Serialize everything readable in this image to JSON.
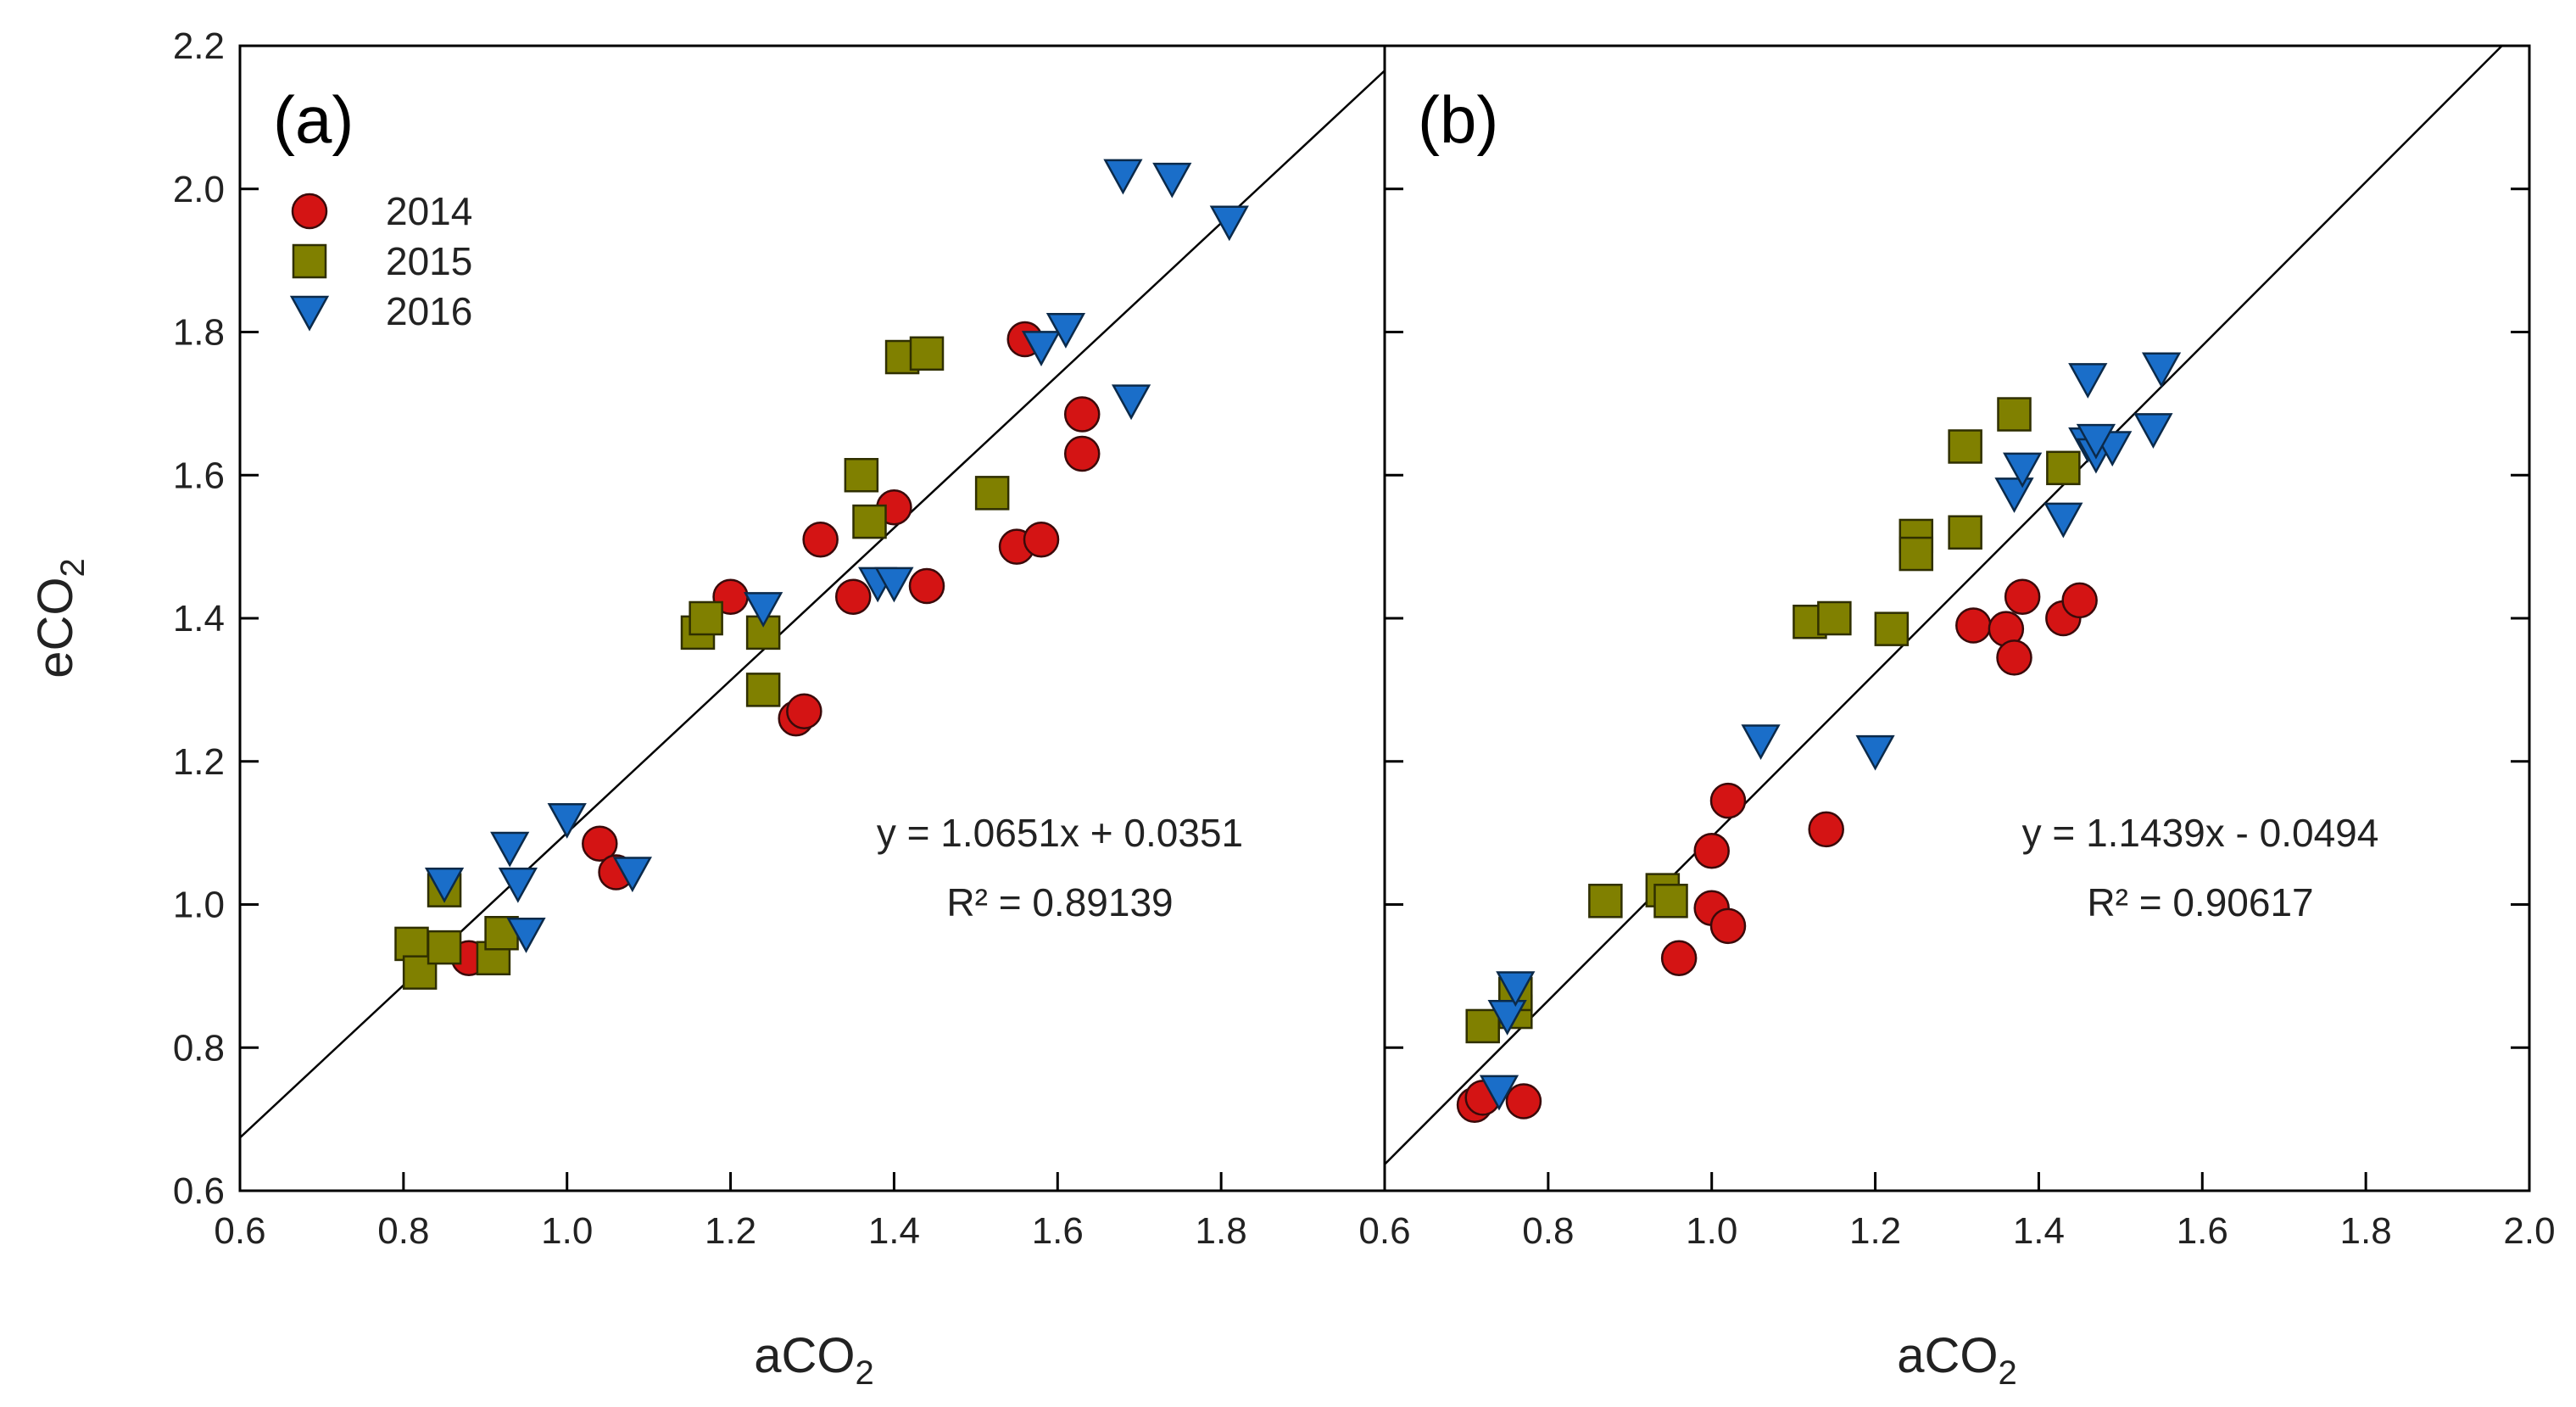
{
  "chart_data": [
    {
      "type": "scatter",
      "panel_label": "(a)",
      "xlabel": "aCO",
      "xlabel_sub": "2",
      "ylabel": "eCO",
      "ylabel_sub": "2",
      "xlim": [
        0.6,
        2.0
      ],
      "ylim": [
        0.6,
        2.2
      ],
      "xticks": [
        "0.6",
        "0.8",
        "1.0",
        "1.2",
        "1.4",
        "1.6",
        "1.8"
      ],
      "yticks": [
        "0.6",
        "0.8",
        "1.0",
        "1.2",
        "1.4",
        "1.6",
        "1.8",
        "2.0",
        "2.2"
      ],
      "fit": {
        "slope": 1.0651,
        "intercept": 0.0351
      },
      "equation": "y = 1.0651x + 0.0351",
      "r2": "R² = 0.89139",
      "legend_position": "top-left",
      "series": [
        {
          "name": "2014",
          "marker": "circle",
          "points": [
            [
              0.88,
              0.925
            ],
            [
              1.04,
              1.085
            ],
            [
              1.06,
              1.045
            ],
            [
              1.2,
              1.43
            ],
            [
              1.28,
              1.26
            ],
            [
              1.29,
              1.27
            ],
            [
              1.31,
              1.51
            ],
            [
              1.35,
              1.43
            ],
            [
              1.4,
              1.555
            ],
            [
              1.44,
              1.445
            ],
            [
              1.55,
              1.5
            ],
            [
              1.58,
              1.51
            ],
            [
              1.56,
              1.79
            ],
            [
              1.63,
              1.685
            ],
            [
              1.63,
              1.63
            ]
          ]
        },
        {
          "name": "2015",
          "marker": "square",
          "points": [
            [
              0.81,
              0.945
            ],
            [
              0.82,
              0.905
            ],
            [
              0.85,
              1.02
            ],
            [
              0.85,
              0.94
            ],
            [
              0.91,
              0.925
            ],
            [
              0.92,
              0.96
            ],
            [
              1.16,
              1.38
            ],
            [
              1.17,
              1.4
            ],
            [
              1.24,
              1.38
            ],
            [
              1.24,
              1.3
            ],
            [
              1.36,
              1.6
            ],
            [
              1.37,
              1.535
            ],
            [
              1.41,
              1.765
            ],
            [
              1.44,
              1.77
            ],
            [
              1.52,
              1.575
            ]
          ]
        },
        {
          "name": "2016",
          "marker": "triangle-down",
          "points": [
            [
              0.85,
              1.03
            ],
            [
              0.93,
              1.08
            ],
            [
              0.94,
              1.03
            ],
            [
              0.95,
              0.96
            ],
            [
              1.0,
              1.12
            ],
            [
              1.08,
              1.045
            ],
            [
              1.24,
              1.415
            ],
            [
              1.38,
              1.45
            ],
            [
              1.4,
              1.45
            ],
            [
              1.58,
              1.78
            ],
            [
              1.61,
              1.805
            ],
            [
              1.69,
              1.705
            ],
            [
              1.68,
              2.02
            ],
            [
              1.74,
              2.015
            ],
            [
              1.81,
              1.955
            ]
          ]
        }
      ]
    },
    {
      "type": "scatter",
      "panel_label": "(b)",
      "xlabel": "aCO",
      "xlabel_sub": "2",
      "ylabel": "",
      "xlim": [
        0.6,
        2.0
      ],
      "ylim": [
        0.6,
        2.2
      ],
      "xticks": [
        "0.6",
        "0.8",
        "1.0",
        "1.2",
        "1.4",
        "1.6",
        "1.8",
        "2.0"
      ],
      "fit": {
        "slope": 1.1439,
        "intercept": -0.0494
      },
      "equation": "y = 1.1439x - 0.0494",
      "r2": "R² = 0.90617",
      "series": [
        {
          "name": "2014",
          "marker": "circle",
          "points": [
            [
              0.71,
              0.72
            ],
            [
              0.72,
              0.73
            ],
            [
              0.77,
              0.725
            ],
            [
              0.96,
              0.925
            ],
            [
              1.0,
              0.995
            ],
            [
              1.0,
              1.075
            ],
            [
              1.02,
              0.97
            ],
            [
              1.02,
              1.145
            ],
            [
              1.14,
              1.105
            ],
            [
              1.32,
              1.39
            ],
            [
              1.36,
              1.385
            ],
            [
              1.37,
              1.345
            ],
            [
              1.38,
              1.43
            ],
            [
              1.43,
              1.4
            ],
            [
              1.45,
              1.425
            ]
          ]
        },
        {
          "name": "2015",
          "marker": "square",
          "points": [
            [
              0.72,
              0.83
            ],
            [
              0.76,
              0.85
            ],
            [
              0.76,
              0.875
            ],
            [
              0.87,
              1.005
            ],
            [
              0.94,
              1.02
            ],
            [
              0.95,
              1.005
            ],
            [
              1.12,
              1.395
            ],
            [
              1.15,
              1.4
            ],
            [
              1.22,
              1.385
            ],
            [
              1.25,
              1.515
            ],
            [
              1.25,
              1.49
            ],
            [
              1.31,
              1.52
            ],
            [
              1.31,
              1.64
            ],
            [
              1.37,
              1.685
            ],
            [
              1.43,
              1.61
            ]
          ]
        },
        {
          "name": "2016",
          "marker": "triangle-down",
          "points": [
            [
              0.74,
              0.74
            ],
            [
              0.75,
              0.845
            ],
            [
              0.76,
              0.885
            ],
            [
              1.06,
              1.23
            ],
            [
              1.2,
              1.215
            ],
            [
              1.37,
              1.575
            ],
            [
              1.38,
              1.61
            ],
            [
              1.43,
              1.54
            ],
            [
              1.46,
              1.735
            ],
            [
              1.46,
              1.645
            ],
            [
              1.47,
              1.63
            ],
            [
              1.49,
              1.64
            ],
            [
              1.54,
              1.665
            ],
            [
              1.55,
              1.75
            ],
            [
              1.47,
              1.65
            ]
          ]
        }
      ]
    }
  ]
}
